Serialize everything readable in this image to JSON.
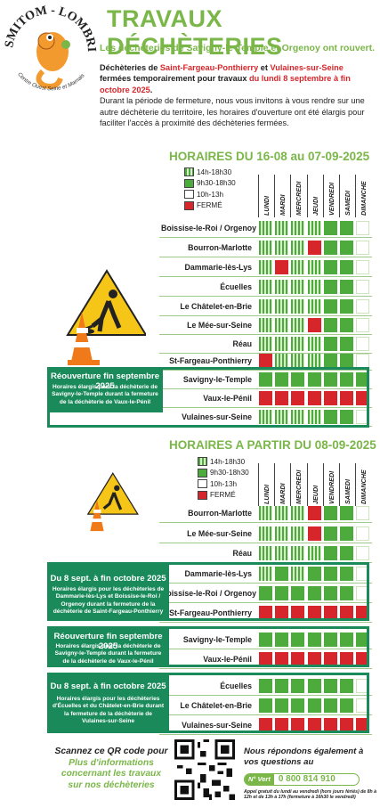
{
  "title": "TRAVAUX DÉCHÈTERIES",
  "subtitle": "Les déchèteries de Savigny-le-Temple et Orgenoy ont rouvert.",
  "logo": {
    "top": "SMITOM - LOMBRIC",
    "bottom": "Centre Ouest Seine et Marnais"
  },
  "intro": {
    "p1_a": "Déchèteries de ",
    "p1_b": "Saint-Fargeau-Ponthierry",
    "p1_c": " et ",
    "p1_d": "Vulaines-sur-Seine",
    "p1_e": " fermées temporairement pour travaux ",
    "p1_f": "du lundi 8 septembre à fin octobre 2025",
    "p1_g": ".",
    "p2": "Durant la période de fermeture, nous vous invitons à vous rendre sur une autre déchèterie du territoire, les horaires d'ouverture ont été élargis pour faciliter l'accès à proximité des déchèteries fermées."
  },
  "legend": [
    {
      "label": "14h-18h30",
      "key": "pm"
    },
    {
      "label": "9h30-18h30",
      "key": "full"
    },
    {
      "label": "10h-13h",
      "key": "am"
    },
    {
      "label": "FERMÉ",
      "key": "closed"
    }
  ],
  "days": [
    "LUNDI",
    "MARDI",
    "MERCREDI",
    "JEUDI",
    "VENDREDI",
    "SAMEDI",
    "DIMANCHE"
  ],
  "colors": {
    "full": "#4daa3c",
    "pm": "#a6d48a",
    "am": "#e6f2dc",
    "closed": "#d7262b",
    "box": "#1a8a5a",
    "accent": "#7ab648"
  },
  "section1": {
    "title": "HORAIRES DU 16-08 au 07-09-2025",
    "rows": [
      {
        "name": "Boissise-le-Roi / Orgenoy",
        "s": [
          "pm",
          "pm",
          "pm",
          "pm",
          "full",
          "full",
          "am"
        ]
      },
      {
        "name": "Bourron-Marlotte",
        "s": [
          "pm",
          "pm",
          "pm",
          "closed",
          "full",
          "full",
          "am"
        ]
      },
      {
        "name": "Dammarie-lès-Lys",
        "s": [
          "pm",
          "closed",
          "pm",
          "pm",
          "full",
          "full",
          "am"
        ]
      },
      {
        "name": "Écuelles",
        "s": [
          "pm",
          "pm",
          "pm",
          "pm",
          "full",
          "full",
          "am"
        ]
      },
      {
        "name": "Le Châtelet-en-Brie",
        "s": [
          "pm",
          "pm",
          "pm",
          "pm",
          "full",
          "full",
          "am"
        ]
      },
      {
        "name": "Le Mée-sur-Seine",
        "s": [
          "pm",
          "pm",
          "pm",
          "closed",
          "full",
          "full",
          "am"
        ]
      },
      {
        "name": "Réau",
        "s": [
          "pm",
          "pm",
          "pm",
          "pm",
          "full",
          "full",
          "am"
        ]
      },
      {
        "name": "St-Fargeau-Ponthierry",
        "s": [
          "closed",
          "pm",
          "pm",
          "pm",
          "full",
          "full",
          "am"
        ]
      },
      {
        "name": "Savigny-le-Temple",
        "s": [
          "full",
          "full",
          "full",
          "full",
          "full",
          "full",
          "full"
        ]
      },
      {
        "name": "Vaux-le-Pénil",
        "s": [
          "closed",
          "closed",
          "closed",
          "closed",
          "closed",
          "closed",
          "closed"
        ]
      },
      {
        "name": "Vulaines-sur-Seine",
        "s": [
          "pm",
          "pm",
          "pm",
          "pm",
          "full",
          "full",
          "am"
        ]
      }
    ],
    "box": {
      "title": "Réouverture fin septembre 2025",
      "text": "Horaires élargis pour la déchèterie de Savigny-le-Temple durant la fermeture de la déchèterie de Vaux-le-Pénil"
    }
  },
  "section2": {
    "title": "HORAIRES A PARTIR DU 08-09-2025",
    "rows": [
      {
        "name": "Bourron-Marlotte",
        "s": [
          "pm",
          "pm",
          "pm",
          "closed",
          "full",
          "full",
          "am"
        ]
      },
      {
        "name": "Le Mée-sur-Seine",
        "s": [
          "pm",
          "pm",
          "pm",
          "closed",
          "full",
          "full",
          "am"
        ]
      },
      {
        "name": "Réau",
        "s": [
          "pm",
          "pm",
          "pm",
          "pm",
          "full",
          "full",
          "am"
        ]
      },
      {
        "name": "Dammarie-lès-Lys",
        "s": [
          "pm",
          "full",
          "pm",
          "full",
          "full",
          "full",
          "am"
        ]
      },
      {
        "name": "Boissise-le-Roi / Orgenoy",
        "s": [
          "full",
          "full",
          "full",
          "full",
          "full",
          "full",
          "am"
        ]
      },
      {
        "name": "St-Fargeau-Ponthierry",
        "s": [
          "closed",
          "closed",
          "closed",
          "closed",
          "closed",
          "closed",
          "closed"
        ]
      },
      {
        "name": "Savigny-le-Temple",
        "s": [
          "full",
          "full",
          "full",
          "full",
          "full",
          "full",
          "full"
        ]
      },
      {
        "name": "Vaux-le-Pénil",
        "s": [
          "closed",
          "closed",
          "closed",
          "closed",
          "closed",
          "closed",
          "closed"
        ]
      },
      {
        "name": "Écuelles",
        "s": [
          "full",
          "full",
          "full",
          "full",
          "full",
          "full",
          "am"
        ]
      },
      {
        "name": "Le Châtelet-en-Brie",
        "s": [
          "full",
          "full",
          "full",
          "full",
          "full",
          "full",
          "am"
        ]
      },
      {
        "name": "Vulaines-sur-Seine",
        "s": [
          "closed",
          "closed",
          "closed",
          "closed",
          "closed",
          "closed",
          "closed"
        ]
      }
    ],
    "boxes": [
      {
        "title": "Du 8 sept. à fin octobre 2025",
        "text": "Horaires élargis pour les déchèteries de Dammarie-lès-Lys et Boissise-le-Roi / Orgenoy durant la fermeture de la déchèterie de Saint-Fargeau-Ponthierry"
      },
      {
        "title": "Réouverture fin septembre 2025",
        "text": "Horaires élargis pour la déchèterie de Savigny-le-Temple durant la fermeture de la déchèterie de Vaux-le-Pénil"
      },
      {
        "title": "Du 8 sept. à fin octobre 2025",
        "text": "Horaires élargis pour les déchèteries d'Écuelles et du Châtelet-en-Brie durant la fermeture de la déchèterie de Vulaines-sur-Seine"
      }
    ]
  },
  "footer": {
    "qr_a": "Scannez ce QR code pour",
    "qr_b": "Plus d'informations concernant les travaux sur nos déchèteries",
    "help": "Nous répondons également à vos questions au",
    "badge": "N° Vert",
    "phone": "0 800 814 910",
    "hours": "Appel gratuit du lundi au vendredi (hors jours fériés) de 8h à 12h et de 13h à 17h (fermeture à 16h30 le vendredi)"
  }
}
